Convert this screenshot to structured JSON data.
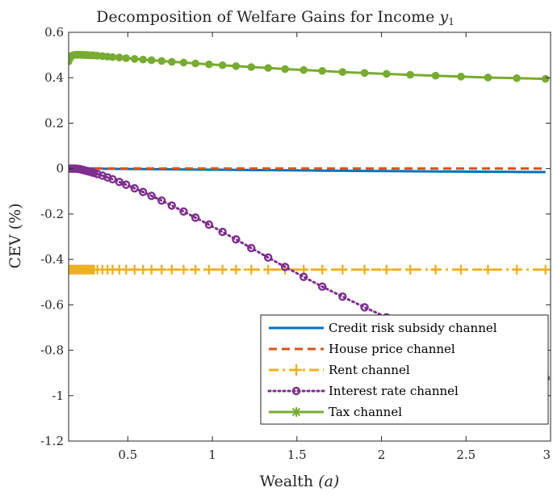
{
  "chart_data": {
    "type": "line",
    "title": "Decomposition of Welfare Gains for Income",
    "title_math_var": "y",
    "title_math_sub": "1",
    "xlabel": "Wealth",
    "xlabel_math": "(a)",
    "ylabel": "CEV (%)",
    "xlim": [
      0.15,
      3.0
    ],
    "ylim": [
      -1.2,
      0.6
    ],
    "xticks": [
      0.5,
      1,
      1.5,
      2,
      2.5,
      3
    ],
    "xtick_labels": [
      "0.5",
      "1",
      "1.5",
      "2",
      "2.5",
      "3"
    ],
    "yticks": [
      -1.2,
      -1,
      -0.8,
      -0.6,
      -0.4,
      -0.2,
      0,
      0.2,
      0.4,
      0.6
    ],
    "ytick_labels": [
      "-1.2",
      "-1",
      "-0.8",
      "-0.6",
      "-0.4",
      "-0.2",
      "0",
      "0.2",
      "0.4",
      "0.6"
    ],
    "grid": false,
    "legend_position": "bottom-right",
    "x": [
      0.15,
      0.16,
      0.17,
      0.18,
      0.19,
      0.2,
      0.21,
      0.22,
      0.23,
      0.24,
      0.25,
      0.26,
      0.27,
      0.28,
      0.29,
      0.3,
      0.32,
      0.35,
      0.38,
      0.41,
      0.45,
      0.49,
      0.54,
      0.59,
      0.64,
      0.7,
      0.76,
      0.83,
      0.9,
      0.98,
      1.06,
      1.14,
      1.23,
      1.33,
      1.43,
      1.54,
      1.65,
      1.77,
      1.9,
      2.03,
      2.17,
      2.32,
      2.47,
      2.63,
      2.8,
      2.97
    ],
    "series": [
      {
        "name": "Credit risk subsidy channel",
        "color": "#0072BD",
        "line_style": "solid",
        "marker": "none",
        "values": [
          0.0,
          0.0,
          0.0,
          0.0,
          0.0,
          0.0,
          0.0,
          0.0,
          0.0,
          0.0,
          0.0,
          0.0,
          0.0,
          0.0,
          0.0,
          0.0,
          -0.0005,
          -0.0008,
          -0.001,
          -0.0012,
          -0.0015,
          -0.0018,
          -0.002,
          -0.0023,
          -0.0026,
          -0.003,
          -0.0034,
          -0.0038,
          -0.0043,
          -0.0048,
          -0.0053,
          -0.0058,
          -0.0064,
          -0.007,
          -0.0076,
          -0.0083,
          -0.009,
          -0.0097,
          -0.0104,
          -0.0111,
          -0.0118,
          -0.0126,
          -0.0133,
          -0.0141,
          -0.0148,
          -0.0155
        ]
      },
      {
        "name": "House price channel",
        "color": "#D95319",
        "line_style": "dashed",
        "marker": "none",
        "values": [
          0.0,
          0.0,
          0.0,
          0.0,
          0.0,
          0.0,
          0.0,
          0.0,
          0.0,
          0.0,
          0.0,
          0.0,
          0.0,
          0.0,
          0.0,
          0.0,
          0.0,
          0.0,
          0.0,
          0.0,
          0.0,
          0.0,
          0.0,
          0.0,
          0.0,
          0.0,
          0.0,
          0.0,
          0.0,
          0.0,
          0.0,
          0.0,
          0.0,
          0.0,
          0.0,
          0.0,
          0.0,
          0.0,
          0.0,
          0.0,
          0.0,
          0.0,
          0.0,
          0.0,
          0.0,
          0.0
        ]
      },
      {
        "name": "Rent channel",
        "color": "#EDB120",
        "line_style": "dashdot",
        "marker": "plus",
        "values": [
          -0.445,
          -0.445,
          -0.445,
          -0.445,
          -0.445,
          -0.445,
          -0.445,
          -0.445,
          -0.445,
          -0.445,
          -0.445,
          -0.445,
          -0.445,
          -0.445,
          -0.445,
          -0.445,
          -0.445,
          -0.445,
          -0.445,
          -0.445,
          -0.445,
          -0.445,
          -0.445,
          -0.445,
          -0.445,
          -0.445,
          -0.445,
          -0.445,
          -0.445,
          -0.445,
          -0.445,
          -0.445,
          -0.445,
          -0.445,
          -0.445,
          -0.445,
          -0.445,
          -0.445,
          -0.445,
          -0.445,
          -0.445,
          -0.445,
          -0.445,
          -0.445,
          -0.445,
          -0.445
        ]
      },
      {
        "name": "Interest rate channel",
        "color": "#7E2F8E",
        "line_style": "dotted",
        "marker": "circle",
        "values": [
          0.0,
          0.0,
          0.0,
          0.0,
          0.0,
          -0.001,
          -0.002,
          -0.003,
          -0.005,
          -0.007,
          -0.009,
          -0.011,
          -0.013,
          -0.015,
          -0.017,
          -0.019,
          -0.024,
          -0.031,
          -0.039,
          -0.047,
          -0.059,
          -0.071,
          -0.087,
          -0.103,
          -0.12,
          -0.141,
          -0.163,
          -0.189,
          -0.216,
          -0.247,
          -0.279,
          -0.312,
          -0.35,
          -0.392,
          -0.433,
          -0.477,
          -0.52,
          -0.564,
          -0.611,
          -0.655,
          -0.701,
          -0.747,
          -0.791,
          -0.836,
          -0.88,
          -0.923
        ]
      },
      {
        "name": "Tax channel",
        "color": "#77AC30",
        "line_style": "solid",
        "marker": "filled-circle",
        "values": [
          0.472,
          0.488,
          0.497,
          0.5,
          0.501,
          0.501,
          0.501,
          0.501,
          0.501,
          0.5,
          0.5,
          0.5,
          0.499,
          0.499,
          0.499,
          0.498,
          0.497,
          0.495,
          0.493,
          0.491,
          0.489,
          0.486,
          0.483,
          0.48,
          0.477,
          0.474,
          0.47,
          0.467,
          0.463,
          0.459,
          0.455,
          0.451,
          0.447,
          0.443,
          0.438,
          0.434,
          0.43,
          0.425,
          0.421,
          0.417,
          0.413,
          0.409,
          0.405,
          0.401,
          0.398,
          0.395
        ]
      }
    ]
  }
}
